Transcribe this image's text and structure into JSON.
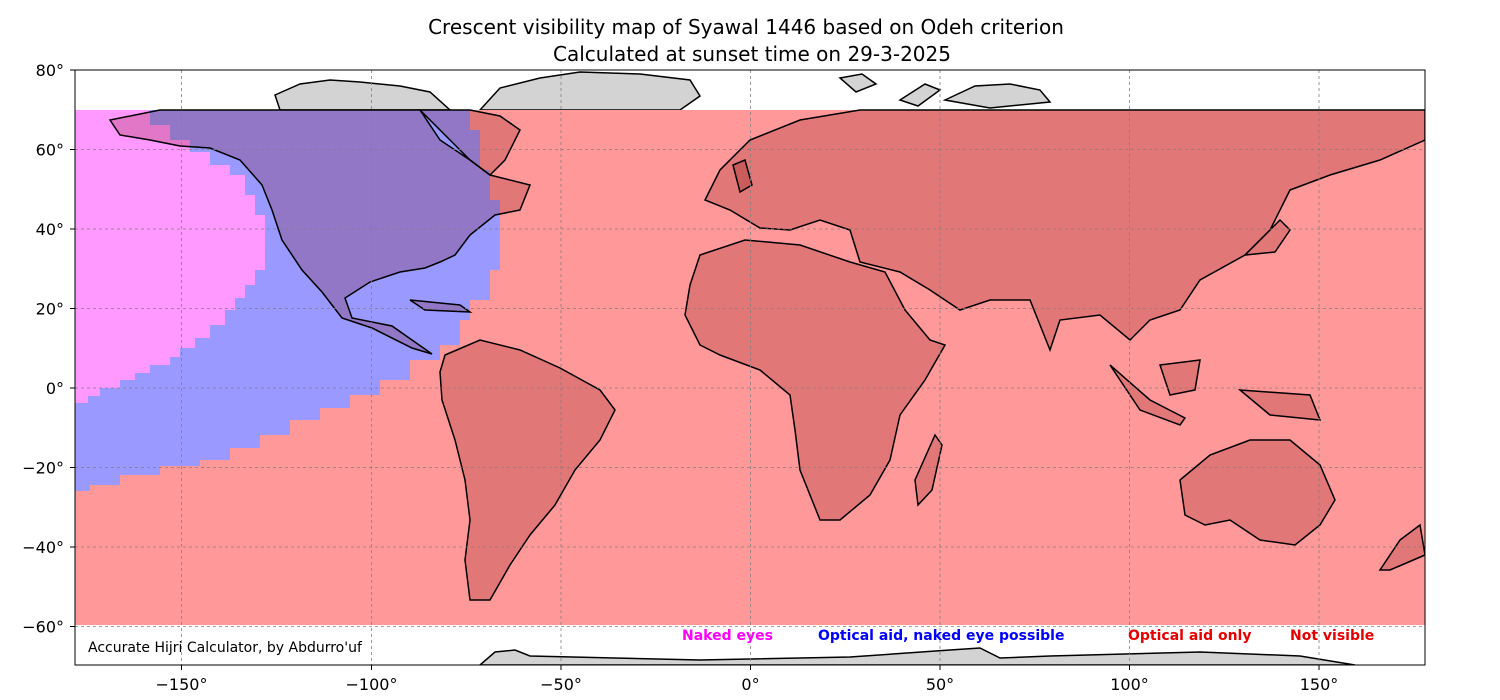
{
  "title_line1": "Crescent visibility map of Syawal 1446 based on Odeh criterion",
  "title_line2": "Calculated at sunset time on 29-3-2025",
  "credit": "Accurate Hijri Calculator, by Abdurro'uf",
  "x_ticks": [
    "−150°",
    "−100°",
    "−50°",
    "0°",
    "50°",
    "100°",
    "150°"
  ],
  "y_ticks": [
    "80°",
    "60°",
    "40°",
    "20°",
    "0°",
    "−20°",
    "−40°",
    "−60°"
  ],
  "legend": [
    {
      "label": "Naked eyes",
      "color": "#ff00ff"
    },
    {
      "label": "Optical aid, naked eye possible",
      "color": "#0000ff"
    },
    {
      "label": "Optical aid only",
      "color": "#e60000"
    },
    {
      "label": "Not visible",
      "color": "#e60000"
    }
  ],
  "colors": {
    "naked_eye_zone": "#ff99ff",
    "optical_aid_possible_zone": "#9999ff",
    "optical_aid_only_zone": "#ff9999",
    "land": "#d3d3d3",
    "coastline": "#000000"
  },
  "map": {
    "projection": "PlateCarree",
    "lon_range": [
      -180,
      180
    ],
    "lat_range": [
      -70,
      80
    ],
    "shaded_lat_range": [
      -60,
      70
    ],
    "gridlines": true
  }
}
